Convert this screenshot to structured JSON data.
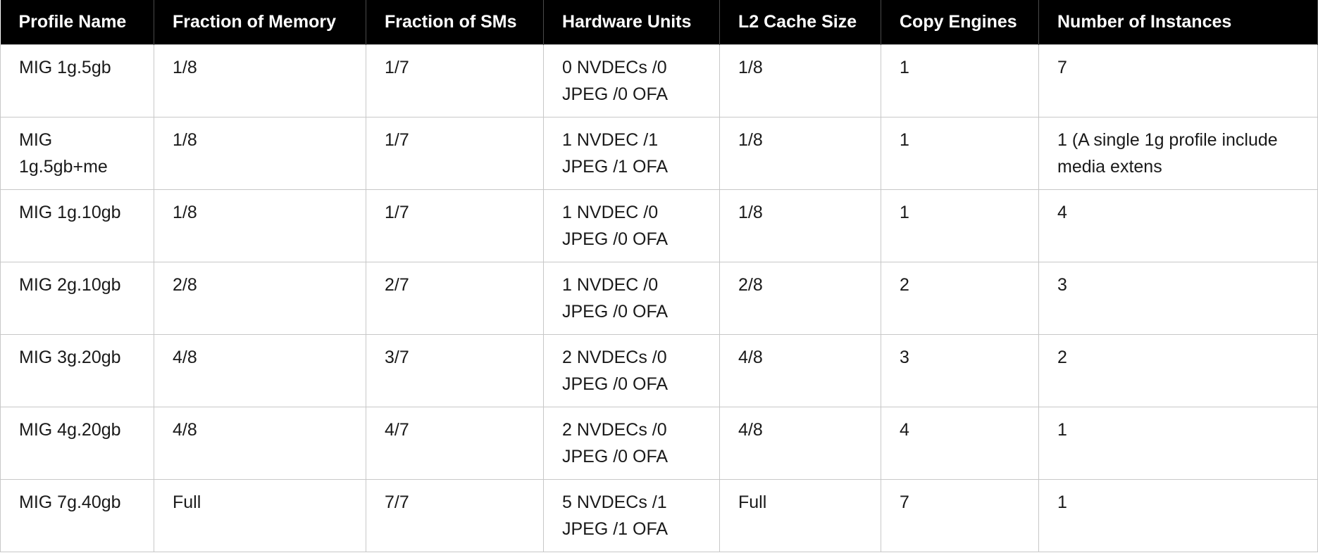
{
  "table": {
    "headers": [
      "Profile Name",
      "Fraction of Memory",
      "Fraction of SMs",
      "Hardware Units",
      "L2 Cache Size",
      "Copy Engines",
      "Number of Instances"
    ],
    "rows": [
      [
        "MIG 1g.5gb",
        "1/8",
        "1/7",
        "0 NVDECs /0 JPEG /0 OFA",
        "1/8",
        "1",
        "7"
      ],
      [
        "MIG 1g.5gb+me",
        "1/8",
        "1/7",
        "1 NVDEC /1 JPEG /1 OFA",
        "1/8",
        "1",
        "1 (A single 1g profile include media extens"
      ],
      [
        "MIG 1g.10gb",
        "1/8",
        "1/7",
        "1 NVDEC /0 JPEG /0 OFA",
        "1/8",
        "1",
        "4"
      ],
      [
        "MIG 2g.10gb",
        "2/8",
        "2/7",
        "1 NVDEC /0 JPEG /0 OFA",
        "2/8",
        "2",
        "3"
      ],
      [
        "MIG 3g.20gb",
        "4/8",
        "3/7",
        "2 NVDECs /0 JPEG /0 OFA",
        "4/8",
        "3",
        "2"
      ],
      [
        "MIG 4g.20gb",
        "4/8",
        "4/7",
        "2 NVDECs /0 JPEG /0 OFA",
        "4/8",
        "4",
        "1"
      ],
      [
        "MIG 7g.40gb",
        "Full",
        "7/7",
        "5 NVDECs /1 JPEG /1 OFA",
        "Full",
        "7",
        "1"
      ]
    ]
  }
}
